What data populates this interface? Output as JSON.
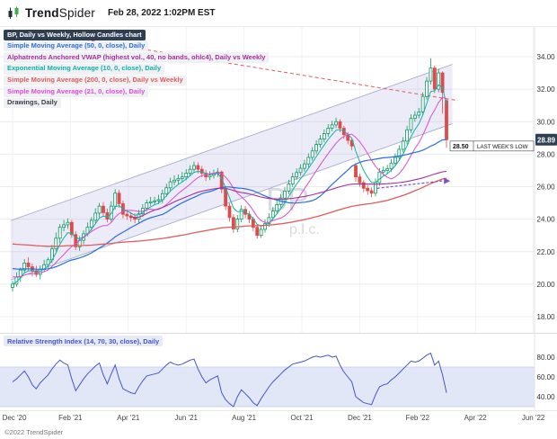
{
  "header": {
    "brand_bold": "Trend",
    "brand_light": "Spider",
    "datetime": "Feb 28, 2022 1:02PM EST"
  },
  "footer": {
    "copyright": "©2022 TrendSpider"
  },
  "legend": {
    "items": [
      {
        "name": "symbol",
        "label": "BP, Daily vs Weekly, Hollow Candles chart",
        "color": "#ffffff",
        "bg": "#2e3f54"
      },
      {
        "name": "sma50",
        "label": "Simple Moving Average (50, 0, close), Daily",
        "color": "#2a6fdb"
      },
      {
        "name": "vwap",
        "label": "Alphatrends Anchored VWAP (highest vol., 40, no bands, ohlc4), Daily vs Weekly",
        "color": "#a2309b"
      },
      {
        "name": "ema10",
        "label": "Exponential Moving Average (10, 0, close), Daily",
        "color": "#14b0a5"
      },
      {
        "name": "sma200",
        "label": "Simple Moving Average (200, 0, close), Daily vs Weekly",
        "color": "#e05c5c"
      },
      {
        "name": "sma21",
        "label": "Simple Moving Average (21, 0, close), Daily",
        "color": "#da4fd1"
      },
      {
        "name": "drawings",
        "label": "Drawings, Daily",
        "color": "#3a3f45"
      }
    ]
  },
  "chart_data": {
    "type": "candlestick",
    "symbol": "BP",
    "title": "BP, Daily vs Weekly, Hollow Candles chart",
    "watermark": [
      "BP",
      "p.l.c."
    ],
    "last_price": 28.89,
    "last_price_label": "28.89",
    "colors": {
      "up": "#0f9960",
      "down": "#de4b4b",
      "badge": "#2e3f54",
      "channel_fill": "rgba(106,110,200,0.13)",
      "channel_line": "#a0a5cc",
      "watermark": "#b7bcc4",
      "resistance": "#e05c5c",
      "projection": "#7a52cc",
      "rsi_line": "#4456c4",
      "rsi_band": "#e2e7f8",
      "rsi_band_edge": "#c3cbf0"
    },
    "y_axis": {
      "ticks": [
        {
          "p": 34,
          "label": "34.00"
        },
        {
          "p": 32,
          "label": "32.00"
        },
        {
          "p": 30,
          "label": "30.00"
        },
        {
          "p": 28,
          "label": "28.00"
        },
        {
          "p": 26,
          "label": "26.00"
        },
        {
          "p": 24,
          "label": "24.00"
        },
        {
          "p": 22,
          "label": "22.00"
        },
        {
          "p": 20,
          "label": "20.00"
        },
        {
          "p": 18,
          "label": "18.00"
        }
      ]
    },
    "x_axis": {
      "ticks": [
        {
          "m": 0,
          "label": "Dec '20"
        },
        {
          "m": 2,
          "label": "Feb '21"
        },
        {
          "m": 4,
          "label": "Apr '21"
        },
        {
          "m": 6,
          "label": "Jun '21"
        },
        {
          "m": 8,
          "label": "Aug '21"
        },
        {
          "m": 10,
          "label": "Oct '21"
        },
        {
          "m": 12,
          "label": "Dec '21"
        },
        {
          "m": 14,
          "label": "Feb '22"
        },
        {
          "m": 16,
          "label": "Apr '22"
        },
        {
          "m": 18,
          "label": "Jun '22"
        }
      ]
    },
    "candles": [
      [
        19.8,
        20.2,
        19.55,
        20.0
      ],
      [
        20.0,
        20.73,
        19.85,
        20.43
      ],
      [
        20.43,
        21.02,
        20.13,
        20.87
      ],
      [
        20.87,
        21.55,
        20.67,
        21.3
      ],
      [
        21.3,
        21.65,
        20.82,
        21.07
      ],
      [
        21.07,
        21.27,
        20.48,
        20.83
      ],
      [
        20.83,
        21.13,
        20.45,
        20.6
      ],
      [
        20.6,
        21.15,
        20.3,
        20.9
      ],
      [
        20.9,
        21.5,
        20.75,
        21.2
      ],
      [
        21.2,
        21.65,
        21.0,
        21.5
      ],
      [
        21.5,
        22.42,
        21.3,
        22.17
      ],
      [
        22.17,
        23.18,
        22.02,
        22.83
      ],
      [
        22.83,
        23.7,
        22.53,
        23.5
      ],
      [
        23.5,
        23.95,
        23.25,
        23.65
      ],
      [
        23.65,
        24.05,
        23.4,
        23.8
      ],
      [
        23.8,
        23.95,
        22.85,
        23.05
      ],
      [
        23.05,
        23.25,
        22.1,
        22.3
      ],
      [
        22.3,
        22.95,
        22.05,
        22.7
      ],
      [
        22.7,
        23.3,
        22.45,
        23.1
      ],
      [
        23.1,
        23.8,
        22.95,
        23.5
      ],
      [
        23.5,
        24.13,
        23.3,
        23.93
      ],
      [
        23.93,
        24.67,
        23.73,
        24.37
      ],
      [
        24.37,
        25.0,
        24.12,
        24.8
      ],
      [
        24.8,
        25.05,
        24.15,
        24.4
      ],
      [
        24.4,
        24.65,
        23.8,
        24.0
      ],
      [
        24.0,
        25.1,
        23.85,
        24.8
      ],
      [
        24.8,
        25.85,
        24.6,
        25.6
      ],
      [
        25.6,
        25.8,
        24.7,
        24.95
      ],
      [
        24.95,
        25.15,
        24.05,
        24.3
      ],
      [
        24.3,
        24.6,
        23.95,
        24.2
      ],
      [
        24.2,
        24.45,
        23.85,
        24.1
      ],
      [
        24.1,
        24.35,
        23.75,
        24.0
      ],
      [
        24.0,
        24.58,
        23.8,
        24.33
      ],
      [
        24.33,
        24.92,
        24.13,
        24.67
      ],
      [
        24.67,
        25.2,
        24.47,
        25.0
      ],
      [
        25.0,
        25.37,
        24.82,
        25.07
      ],
      [
        25.07,
        25.38,
        24.88,
        25.13
      ],
      [
        25.13,
        25.5,
        24.93,
        25.2
      ],
      [
        25.2,
        25.82,
        25.0,
        25.57
      ],
      [
        25.57,
        26.18,
        25.37,
        25.93
      ],
      [
        25.93,
        26.55,
        25.73,
        26.3
      ],
      [
        26.3,
        26.7,
        26.1,
        26.4
      ],
      [
        26.4,
        26.75,
        26.15,
        26.5
      ],
      [
        26.5,
        26.9,
        26.3,
        26.6
      ],
      [
        26.6,
        27.08,
        26.4,
        26.83
      ],
      [
        26.83,
        27.32,
        26.63,
        27.07
      ],
      [
        27.07,
        27.55,
        26.87,
        27.3
      ],
      [
        27.3,
        27.5,
        26.82,
        27.07
      ],
      [
        27.07,
        27.27,
        26.58,
        26.83
      ],
      [
        26.83,
        27.03,
        26.35,
        26.6
      ],
      [
        26.6,
        26.95,
        26.4,
        26.7
      ],
      [
        26.7,
        27.05,
        26.5,
        26.8
      ],
      [
        26.8,
        27.15,
        26.6,
        26.9
      ],
      [
        26.9,
        27.0,
        25.6,
        25.85
      ],
      [
        25.85,
        26.0,
        24.55,
        24.8
      ],
      [
        24.8,
        25.0,
        23.85,
        24.1
      ],
      [
        24.1,
        24.3,
        23.15,
        23.4
      ],
      [
        23.4,
        24.25,
        23.2,
        24.0
      ],
      [
        24.0,
        24.85,
        23.8,
        24.6
      ],
      [
        24.6,
        24.8,
        24.05,
        24.3
      ],
      [
        24.3,
        24.5,
        23.75,
        24.0
      ],
      [
        24.0,
        24.15,
        23.25,
        23.5
      ],
      [
        23.5,
        23.65,
        22.8,
        23.0
      ],
      [
        23.0,
        23.62,
        22.85,
        23.37
      ],
      [
        23.37,
        23.98,
        23.17,
        23.73
      ],
      [
        23.73,
        24.35,
        23.53,
        24.1
      ],
      [
        24.1,
        24.75,
        23.9,
        24.5
      ],
      [
        24.5,
        25.15,
        24.3,
        24.9
      ],
      [
        24.9,
        25.55,
        24.7,
        25.3
      ],
      [
        25.3,
        25.98,
        25.1,
        25.73
      ],
      [
        25.73,
        26.42,
        25.53,
        26.17
      ],
      [
        26.17,
        26.85,
        25.97,
        26.6
      ],
      [
        26.6,
        27.12,
        26.4,
        26.87
      ],
      [
        26.87,
        27.38,
        26.67,
        27.13
      ],
      [
        27.13,
        27.65,
        26.93,
        27.4
      ],
      [
        27.4,
        28.05,
        27.2,
        27.8
      ],
      [
        27.8,
        28.45,
        27.6,
        28.2
      ],
      [
        28.2,
        28.85,
        28.0,
        28.6
      ],
      [
        28.6,
        29.18,
        28.4,
        28.93
      ],
      [
        28.93,
        29.52,
        28.73,
        29.27
      ],
      [
        29.27,
        29.85,
        29.07,
        29.6
      ],
      [
        29.6,
        30.05,
        29.4,
        29.8
      ],
      [
        29.8,
        30.25,
        29.6,
        30.0
      ],
      [
        30.0,
        30.15,
        29.35,
        29.6
      ],
      [
        29.6,
        29.75,
        28.95,
        29.2
      ],
      [
        29.2,
        29.35,
        28.6,
        28.85
      ],
      [
        28.85,
        29.0,
        28.25,
        28.5
      ],
      [
        27.3,
        27.45,
        26.3,
        26.6
      ],
      [
        26.6,
        26.8,
        26.0,
        26.25
      ],
      [
        26.25,
        26.4,
        25.65,
        25.9
      ],
      [
        25.9,
        26.1,
        25.5,
        25.75
      ],
      [
        25.75,
        25.95,
        25.35,
        25.6
      ],
      [
        25.6,
        26.5,
        25.4,
        26.25
      ],
      [
        26.25,
        27.15,
        26.05,
        26.9
      ],
      [
        26.9,
        27.25,
        26.7,
        27.0
      ],
      [
        27.0,
        27.35,
        26.8,
        27.1
      ],
      [
        27.1,
        27.7,
        26.9,
        27.45
      ],
      [
        27.45,
        28.05,
        27.25,
        27.8
      ],
      [
        27.8,
        28.55,
        27.6,
        28.3
      ],
      [
        28.3,
        29.05,
        28.1,
        28.8
      ],
      [
        28.8,
        29.75,
        28.6,
        29.5
      ],
      [
        29.5,
        30.45,
        29.3,
        30.2
      ],
      [
        30.2,
        30.65,
        30.0,
        30.4
      ],
      [
        30.4,
        30.85,
        30.2,
        30.6
      ],
      [
        30.6,
        31.8,
        30.4,
        31.55
      ],
      [
        31.55,
        32.75,
        31.35,
        32.5
      ],
      [
        32.5,
        33.9,
        32.3,
        33.3
      ],
      [
        33.3,
        33.45,
        31.75,
        32.0
      ],
      [
        32.0,
        33.25,
        31.8,
        33.0
      ],
      [
        33.0,
        33.1,
        30.5,
        31.8
      ],
      [
        31.3,
        31.4,
        28.4,
        28.89
      ]
    ],
    "overlays": [
      {
        "name": "ema10",
        "type": "ema",
        "period": 10,
        "render_period": 5,
        "color": "#14b0a5",
        "width": 1
      },
      {
        "name": "sma21",
        "type": "sma",
        "period": 21,
        "render_period": 10,
        "seed": 20.5,
        "color": "#da4fd1",
        "width": 1
      },
      {
        "name": "sma50",
        "type": "sma",
        "period": 50,
        "render_period": 24,
        "seed": 21,
        "color": "#2a6fdb",
        "width": 1.2
      },
      {
        "name": "sma200",
        "type": "sma",
        "period": 200,
        "render_period": 96,
        "seed": 22.5,
        "color": "#e05c5c",
        "width": 1.3
      },
      {
        "name": "vwap",
        "type": "anchored_vwap",
        "anchor": 30,
        "color": "#a2309b",
        "width": 1.1
      }
    ],
    "annotations": {
      "level": {
        "price": 28.5,
        "label": "28.50",
        "text": "LAST WEEK'S LOW"
      },
      "channel": {
        "upper_start": 23.95,
        "upper_end": 33.4,
        "lower_start": 20.3,
        "lower_end": 29.75
      },
      "resistance_line": {
        "m1": 2.3,
        "p1": 35.1,
        "m2": 15.4,
        "p2": 31.3
      },
      "projection": {
        "m1": 12.6,
        "p1": 25.9,
        "m2": 14.85,
        "p2": 26.35
      }
    },
    "rsi": {
      "label": "Relative Strength Index (14, 70, 30, close), Daily",
      "band": [
        30,
        70
      ],
      "ticks": [
        {
          "v": 80,
          "label": "80.00"
        },
        {
          "v": 60,
          "label": "60.00"
        },
        {
          "v": 40,
          "label": "40.00"
        }
      ],
      "values": [
        55,
        58,
        62,
        66,
        60,
        52,
        48,
        54,
        58,
        62,
        68,
        73,
        77,
        74,
        72,
        58,
        46,
        52,
        58,
        63,
        67,
        71,
        74,
        62,
        53,
        63,
        72,
        58,
        48,
        46,
        44,
        43,
        50,
        56,
        61,
        62,
        63,
        64,
        68,
        72,
        75,
        73,
        72,
        73,
        75,
        77,
        78,
        68,
        60,
        54,
        57,
        59,
        61,
        44,
        37,
        33,
        30,
        40,
        47,
        43,
        39,
        34,
        31,
        38,
        44,
        50,
        55,
        59,
        63,
        67,
        70,
        73,
        74,
        75,
        76,
        78,
        80,
        81,
        80,
        81,
        82,
        80,
        81,
        72,
        65,
        60,
        55,
        40,
        37,
        34,
        33,
        32,
        42,
        50,
        52,
        53,
        57,
        60,
        64,
        68,
        72,
        76,
        75,
        76,
        79,
        82,
        84,
        72,
        76,
        62,
        44
      ]
    }
  }
}
